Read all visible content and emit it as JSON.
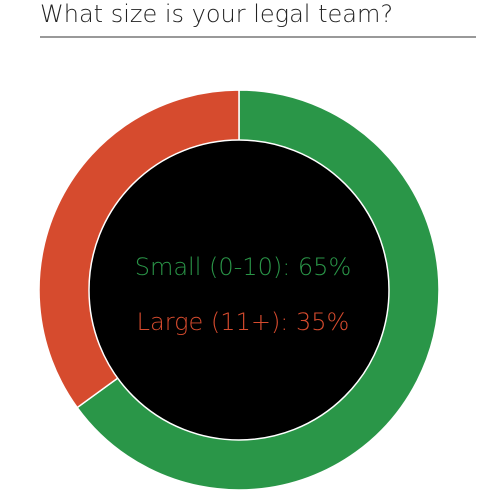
{
  "chart_data": {
    "type": "pie",
    "title": "What size is your legal team?",
    "values": [
      65,
      35
    ],
    "value_labels": [
      "Small (0-10): 65%",
      "Large (11+): 35%"
    ],
    "colors": [
      "#2a9648",
      "#d64b2e"
    ],
    "donut": true
  }
}
